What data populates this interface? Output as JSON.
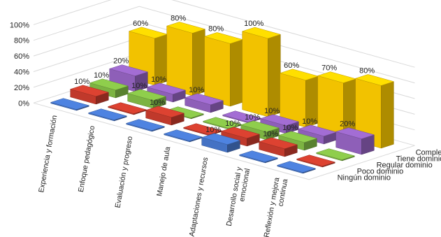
{
  "chart_data": {
    "type": "bar",
    "subtype": "3d-clustered-column",
    "categories": [
      "Experiencia y formación",
      "Enfoque pedagógico",
      "Evaluación y progreso",
      "Manejo de aula",
      "Adaptaciones y recursos",
      "Desarrollo social y emocional",
      "Reflexión y mejora continua"
    ],
    "category_lines": [
      [
        "Experiencia y formación"
      ],
      [
        "Enfoque pedagógico"
      ],
      [
        "Evaluación y progreso"
      ],
      [
        "Manejo de aula"
      ],
      [
        "Adaptaciones y recursos"
      ],
      [
        "Desarrollo social y",
        "emocional"
      ],
      [
        "Reflexión y mejora",
        "continua"
      ]
    ],
    "series": [
      {
        "name": "Ningún dominio",
        "color": "#4472C4",
        "values": [
          0,
          0,
          0,
          0,
          10,
          0,
          0
        ]
      },
      {
        "name": "Poco dominio",
        "color": "#C0392B",
        "values": [
          10,
          0,
          10,
          0,
          10,
          10,
          0
        ]
      },
      {
        "name": "Regular dominio",
        "color": "#7CB342",
        "values": [
          10,
          10,
          0,
          0,
          10,
          10,
          0
        ]
      },
      {
        "name": "Tiene dominio",
        "color": "#8E5FB8",
        "values": [
          20,
          10,
          10,
          0,
          10,
          10,
          20
        ]
      },
      {
        "name": "Completo dominio",
        "color": "#F2C200",
        "values": [
          60,
          80,
          80,
          100,
          60,
          70,
          80
        ]
      }
    ],
    "data_labels": [
      {
        "series": 1,
        "category": 0,
        "text": "10%"
      },
      {
        "series": 2,
        "category": 0,
        "text": "10%"
      },
      {
        "series": 3,
        "category": 0,
        "text": "20%"
      },
      {
        "series": 4,
        "category": 0,
        "text": "60%"
      },
      {
        "series": 2,
        "category": 1,
        "text": "10%"
      },
      {
        "series": 3,
        "category": 1,
        "text": "10%"
      },
      {
        "series": 4,
        "category": 1,
        "text": "80%"
      },
      {
        "series": 1,
        "category": 2,
        "text": "10%"
      },
      {
        "series": 3,
        "category": 2,
        "text": "10%"
      },
      {
        "series": 4,
        "category": 2,
        "text": "80%"
      },
      {
        "series": 4,
        "category": 3,
        "text": "100%"
      },
      {
        "series": 0,
        "category": 4,
        "text": "10%"
      },
      {
        "series": 1,
        "category": 4,
        "text": "10%"
      },
      {
        "series": 2,
        "category": 4,
        "text": "10%"
      },
      {
        "series": 3,
        "category": 4,
        "text": "10%"
      },
      {
        "series": 4,
        "category": 4,
        "text": "60%"
      },
      {
        "series": 1,
        "category": 5,
        "text": "10%"
      },
      {
        "series": 2,
        "category": 5,
        "text": "10%"
      },
      {
        "series": 3,
        "category": 5,
        "text": "10%"
      },
      {
        "series": 4,
        "category": 5,
        "text": "70%"
      },
      {
        "series": 3,
        "category": 6,
        "text": "20%"
      },
      {
        "series": 4,
        "category": 6,
        "text": "80%"
      }
    ],
    "yticks": [
      "0%",
      "20%",
      "40%",
      "60%",
      "80%",
      "100%"
    ],
    "ylim": [
      0,
      100
    ],
    "grid": true,
    "legend": "depth-axis-right"
  }
}
